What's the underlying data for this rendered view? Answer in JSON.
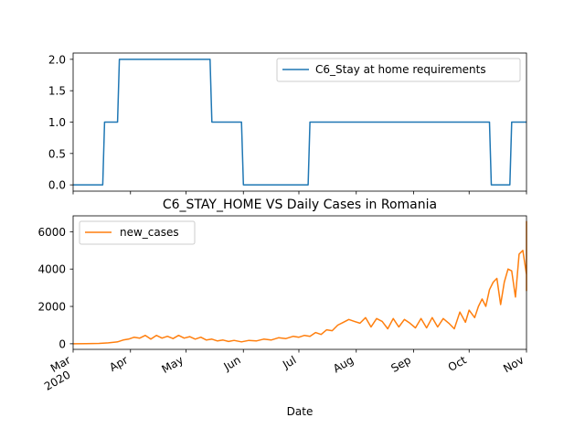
{
  "chart_data": [
    {
      "type": "line",
      "title": "",
      "xlabel": "",
      "ylabel": "",
      "ylim": [
        -0.1,
        2.1
      ],
      "yticks": [
        "0.0",
        "0.5",
        "1.0",
        "1.5",
        "2.0"
      ],
      "x_range": [
        "2020-03-01",
        "2020-11-01"
      ],
      "legend_position": "top-right",
      "grid": false,
      "series": [
        {
          "name": "C6_Stay at home requirements",
          "color": "#1f77b4",
          "points": [
            [
              "2020-03-01",
              0
            ],
            [
              "2020-03-17",
              0
            ],
            [
              "2020-03-18",
              1
            ],
            [
              "2020-03-25",
              1
            ],
            [
              "2020-03-26",
              2
            ],
            [
              "2020-05-14",
              2
            ],
            [
              "2020-05-15",
              1
            ],
            [
              "2020-05-31",
              1
            ],
            [
              "2020-06-01",
              0
            ],
            [
              "2020-07-06",
              0
            ],
            [
              "2020-07-07",
              1
            ],
            [
              "2020-10-12",
              1
            ],
            [
              "2020-10-13",
              0
            ],
            [
              "2020-10-23",
              0
            ],
            [
              "2020-10-24",
              1
            ],
            [
              "2020-11-05",
              1
            ]
          ]
        }
      ]
    },
    {
      "type": "line",
      "title": "C6_STAY_HOME VS Daily Cases in Romania",
      "xlabel": "Date",
      "ylabel": "",
      "ylim": [
        -300,
        6850
      ],
      "yticks": [
        "0",
        "2000",
        "4000",
        "6000"
      ],
      "x_range": [
        "2020-03-01",
        "2020-11-01"
      ],
      "x_ticks": [
        {
          "label": "Mar",
          "sublabel": "2020"
        },
        {
          "label": "Apr"
        },
        {
          "label": "May"
        },
        {
          "label": "Jun"
        },
        {
          "label": "Jul"
        },
        {
          "label": "Aug"
        },
        {
          "label": "Sep"
        },
        {
          "label": "Oct"
        },
        {
          "label": "Nov"
        }
      ],
      "legend_position": "top-left",
      "grid": false,
      "series": [
        {
          "name": "new_cases",
          "color": "#ff7f0e",
          "points": [
            [
              "2020-03-01",
              0
            ],
            [
              "2020-03-08",
              2
            ],
            [
              "2020-03-15",
              20
            ],
            [
              "2020-03-20",
              50
            ],
            [
              "2020-03-25",
              100
            ],
            [
              "2020-03-28",
              200
            ],
            [
              "2020-03-31",
              250
            ],
            [
              "2020-04-03",
              350
            ],
            [
              "2020-04-06",
              300
            ],
            [
              "2020-04-09",
              450
            ],
            [
              "2020-04-12",
              250
            ],
            [
              "2020-04-15",
              450
            ],
            [
              "2020-04-18",
              300
            ],
            [
              "2020-04-21",
              400
            ],
            [
              "2020-04-24",
              280
            ],
            [
              "2020-04-27",
              450
            ],
            [
              "2020-04-30",
              300
            ],
            [
              "2020-05-03",
              380
            ],
            [
              "2020-05-06",
              250
            ],
            [
              "2020-05-09",
              350
            ],
            [
              "2020-05-12",
              200
            ],
            [
              "2020-05-15",
              250
            ],
            [
              "2020-05-18",
              150
            ],
            [
              "2020-05-21",
              200
            ],
            [
              "2020-05-24",
              120
            ],
            [
              "2020-05-27",
              180
            ],
            [
              "2020-05-31",
              100
            ],
            [
              "2020-06-04",
              180
            ],
            [
              "2020-06-08",
              150
            ],
            [
              "2020-06-12",
              250
            ],
            [
              "2020-06-16",
              200
            ],
            [
              "2020-06-20",
              320
            ],
            [
              "2020-06-24",
              280
            ],
            [
              "2020-06-28",
              400
            ],
            [
              "2020-07-01",
              350
            ],
            [
              "2020-07-04",
              450
            ],
            [
              "2020-07-07",
              400
            ],
            [
              "2020-07-10",
              600
            ],
            [
              "2020-07-13",
              500
            ],
            [
              "2020-07-16",
              750
            ],
            [
              "2020-07-19",
              700
            ],
            [
              "2020-07-22",
              1000
            ],
            [
              "2020-07-25",
              1150
            ],
            [
              "2020-07-28",
              1300
            ],
            [
              "2020-07-31",
              1200
            ],
            [
              "2020-08-03",
              1100
            ],
            [
              "2020-08-06",
              1400
            ],
            [
              "2020-08-09",
              900
            ],
            [
              "2020-08-12",
              1350
            ],
            [
              "2020-08-15",
              1200
            ],
            [
              "2020-08-18",
              800
            ],
            [
              "2020-08-21",
              1350
            ],
            [
              "2020-08-24",
              900
            ],
            [
              "2020-08-27",
              1300
            ],
            [
              "2020-08-30",
              1100
            ],
            [
              "2020-09-02",
              850
            ],
            [
              "2020-09-05",
              1350
            ],
            [
              "2020-09-08",
              850
            ],
            [
              "2020-09-11",
              1400
            ],
            [
              "2020-09-14",
              900
            ],
            [
              "2020-09-17",
              1350
            ],
            [
              "2020-09-20",
              1100
            ],
            [
              "2020-09-23",
              800
            ],
            [
              "2020-09-26",
              1700
            ],
            [
              "2020-09-29",
              1150
            ],
            [
              "2020-10-01",
              1800
            ],
            [
              "2020-10-04",
              1400
            ],
            [
              "2020-10-06",
              2000
            ],
            [
              "2020-10-08",
              2400
            ],
            [
              "2020-10-10",
              2000
            ],
            [
              "2020-10-12",
              2900
            ],
            [
              "2020-10-14",
              3300
            ],
            [
              "2020-10-16",
              3500
            ],
            [
              "2020-10-18",
              2100
            ],
            [
              "2020-10-20",
              3300
            ],
            [
              "2020-10-22",
              4000
            ],
            [
              "2020-10-24",
              3900
            ],
            [
              "2020-10-26",
              2500
            ],
            [
              "2020-10-28",
              4800
            ],
            [
              "2020-10-30",
              5000
            ],
            [
              "2020-11-01",
              3700
            ],
            [
              "2020-11-02",
              2850
            ],
            [
              "2020-11-03",
              4800
            ],
            [
              "2020-11-04",
              5600
            ],
            [
              "2020-11-05",
              6400
            ],
            [
              "2020-11-06",
              6550
            ],
            [
              "2020-11-07",
              5300
            ]
          ]
        }
      ]
    }
  ]
}
